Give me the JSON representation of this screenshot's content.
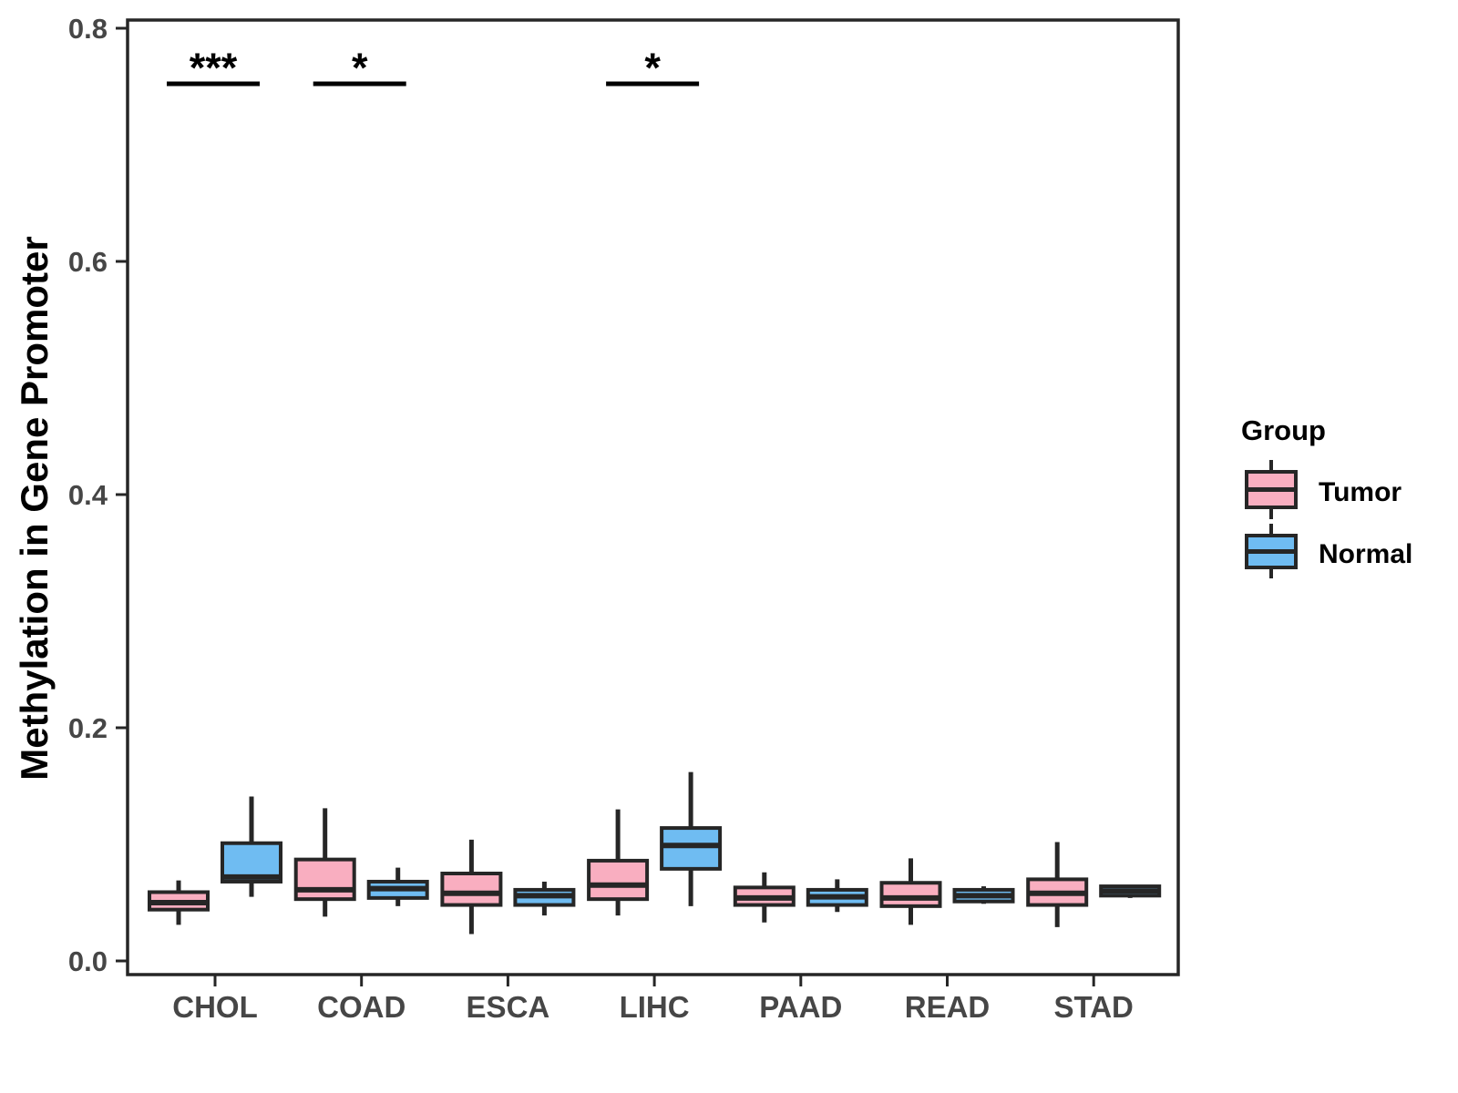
{
  "chart_data": {
    "type": "boxplot",
    "title": "",
    "xlabel": "",
    "ylabel": "Methylation in Gene Promoter",
    "categories": [
      "CHOL",
      "COAD",
      "ESCA",
      "LIHC",
      "PAAD",
      "READ",
      "STAD"
    ],
    "yticks": [
      0.0,
      0.2,
      0.4,
      0.6,
      0.8
    ],
    "ytick_labels": [
      "0.0",
      "0.2",
      "0.4",
      "0.6",
      "0.8"
    ],
    "ylim": [
      -0.012,
      0.807
    ],
    "grid": false,
    "legend": {
      "title": "Group",
      "position": "right"
    },
    "groups": [
      {
        "name": "Tumor",
        "fill": "#F9AEC0"
      },
      {
        "name": "Normal",
        "fill": "#6FBCF2"
      }
    ],
    "stats_order": [
      "min",
      "q1",
      "median",
      "q3",
      "max"
    ],
    "series": [
      {
        "name": "Tumor",
        "values": [
          [
            0.031,
            0.044,
            0.05,
            0.059,
            0.069
          ],
          [
            0.038,
            0.053,
            0.061,
            0.087,
            0.131
          ],
          [
            0.023,
            0.048,
            0.058,
            0.075,
            0.104
          ],
          [
            0.039,
            0.053,
            0.065,
            0.086,
            0.13
          ],
          [
            0.033,
            0.048,
            0.054,
            0.063,
            0.076
          ],
          [
            0.031,
            0.047,
            0.054,
            0.067,
            0.088
          ],
          [
            0.029,
            0.048,
            0.058,
            0.07,
            0.102
          ]
        ]
      },
      {
        "name": "Normal",
        "values": [
          [
            0.055,
            0.068,
            0.072,
            0.101,
            0.141
          ],
          [
            0.047,
            0.054,
            0.062,
            0.068,
            0.08
          ],
          [
            0.039,
            0.048,
            0.056,
            0.061,
            0.068
          ],
          [
            0.047,
            0.079,
            0.099,
            0.114,
            0.162
          ],
          [
            0.042,
            0.048,
            0.055,
            0.061,
            0.07
          ],
          [
            0.049,
            0.051,
            0.056,
            0.061,
            0.064
          ],
          [
            0.054,
            0.056,
            0.06,
            0.064,
            0.065
          ]
        ]
      }
    ],
    "significance": [
      {
        "category": "CHOL",
        "label": "***",
        "bar_y": 0.752
      },
      {
        "category": "COAD",
        "label": "*",
        "bar_y": 0.752
      },
      {
        "category": "LIHC",
        "label": "*",
        "bar_y": 0.752
      }
    ],
    "colors": {
      "box_border": "#262626",
      "axis": "#262626",
      "tick_text": "#464646",
      "title_text": "#000000"
    }
  }
}
